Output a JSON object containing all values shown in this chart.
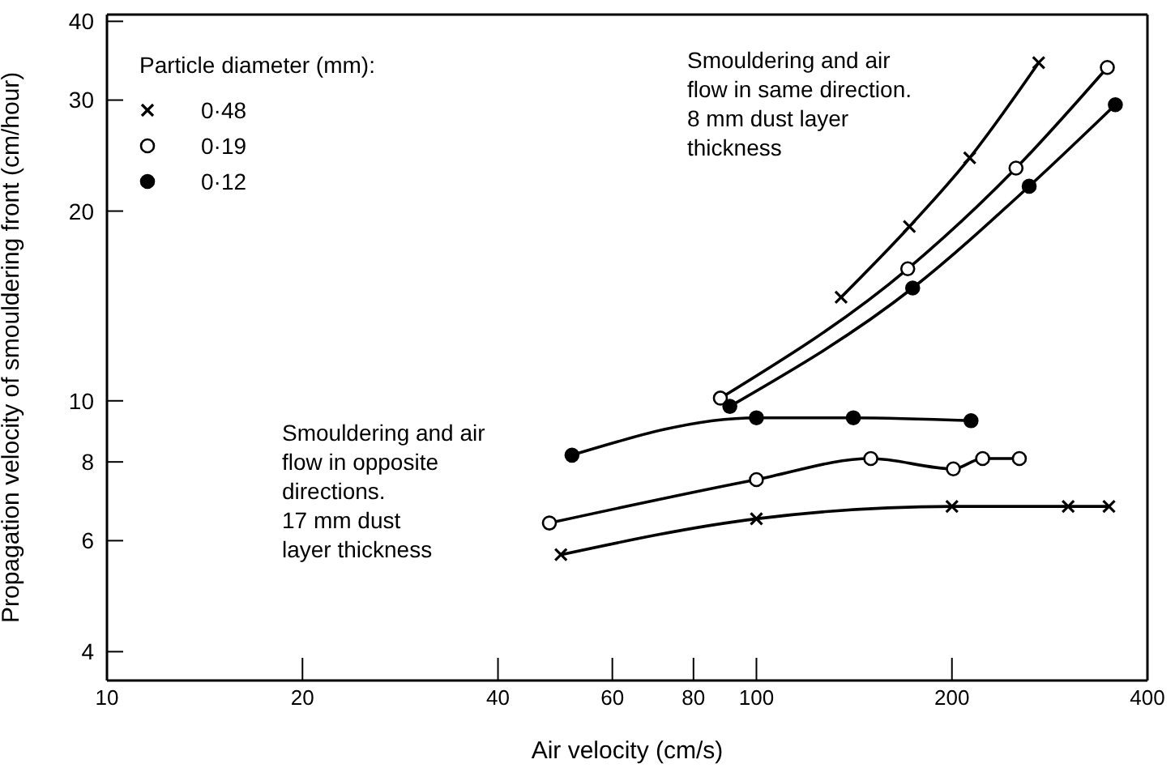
{
  "chart_data": {
    "type": "line",
    "xlabel": "Air velocity (cm/s)",
    "ylabel": "Propagation velocity of smouldering front (cm/hour)",
    "legend_title": "Particle diameter (mm):",
    "legend": "top left",
    "log": "xy",
    "grid": false,
    "line_style": "solid",
    "xlim": [
      10,
      400
    ],
    "xticks": [
      10,
      20,
      40,
      60,
      80,
      100,
      200,
      400
    ],
    "ylim": [
      3.6,
      41
    ],
    "yticks": [
      4,
      6,
      8,
      10,
      20,
      30,
      40
    ],
    "series": [
      {
        "name": "0·48",
        "color": "#000000",
        "marker": "cross",
        "x": [
          135,
          172,
          213,
          272
        ],
        "values": [
          14.6,
          18.9,
          24.3,
          34.4
        ]
      },
      {
        "name": "0·19",
        "color": "#000000",
        "marker": "circle-open",
        "x": [
          88,
          171,
          251,
          347
        ],
        "values": [
          10.1,
          16.2,
          23.4,
          33.8
        ]
      },
      {
        "name": "0·12",
        "color": "#000000",
        "marker": "circle",
        "x": [
          91,
          174,
          263,
          357
        ],
        "values": [
          9.8,
          15.1,
          21.9,
          29.5
        ]
      },
      {
        "color": "#000000",
        "marker": "circle",
        "x": [
          52,
          100,
          141,
          214
        ],
        "values": [
          8.2,
          9.4,
          9.4,
          9.3
        ]
      },
      {
        "color": "#000000",
        "marker": "circle-open",
        "x": [
          48,
          100,
          150,
          201,
          223,
          254
        ],
        "values": [
          6.4,
          7.5,
          8.1,
          7.8,
          8.1,
          8.1
        ]
      },
      {
        "color": "#000000",
        "marker": "cross",
        "x": [
          50,
          100,
          200,
          302,
          349
        ],
        "values": [
          5.7,
          6.5,
          6.8,
          6.8,
          6.8
        ]
      }
    ],
    "annotations": [
      "Smouldering and air\nflow in same direction.\n8 mm dust layer\nthickness",
      "Smouldering and air\nflow in opposite\ndirections.\n17 mm dust\nlayer thickness"
    ]
  }
}
